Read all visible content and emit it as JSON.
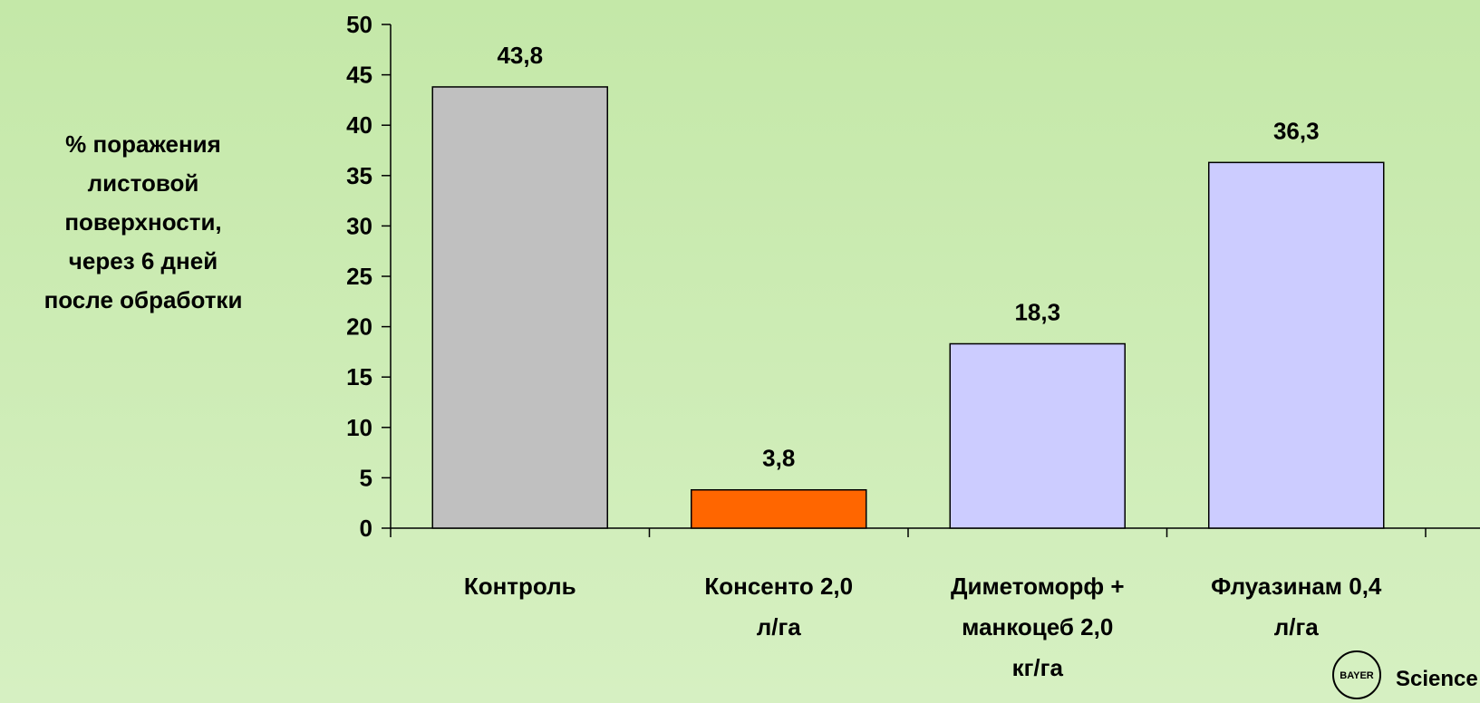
{
  "chart_data": {
    "type": "bar",
    "y_label": "% поражения\nлистовой\nповерхности,\nчерез 6 дней\nпосле обработки",
    "categories": [
      "Контроль",
      "Консенто 2,0\nл/га",
      "Диметоморф +\nманкоцеб 2,0\nкг/га",
      "Флуазинам 0,4\nл/га"
    ],
    "values": [
      43.8,
      3.8,
      18.3,
      36.3
    ],
    "value_labels": [
      "43,8",
      "3,8",
      "18,3",
      "36,3"
    ],
    "colors": [
      "#c0c0c0",
      "#ff6600",
      "#ccccff",
      "#ccccff"
    ],
    "ylim": [
      0,
      50
    ],
    "yticks": [
      0,
      5,
      10,
      15,
      20,
      25,
      30,
      35,
      40,
      45,
      50
    ],
    "logo": "BAYER",
    "footer": "Science For"
  }
}
